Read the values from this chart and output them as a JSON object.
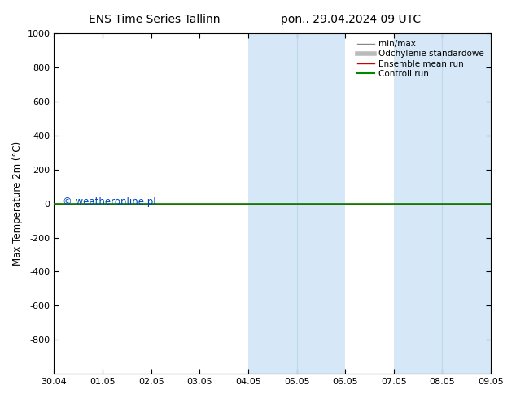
{
  "title_left": "ENS Time Series Tallinn",
  "title_right": "pon.. 29.04.2024 09 UTC",
  "ylabel": "Max Temperature 2m (°C)",
  "ylim_top": -1000,
  "ylim_bottom": 1000,
  "yticks": [
    -800,
    -600,
    -400,
    -200,
    0,
    200,
    400,
    600,
    800,
    1000
  ],
  "xtick_labels": [
    "30.04",
    "01.05",
    "02.05",
    "03.05",
    "04.05",
    "05.05",
    "06.05",
    "07.05",
    "08.05",
    "09.05"
  ],
  "xtick_positions": [
    0,
    1,
    2,
    3,
    4,
    5,
    6,
    7,
    8,
    9
  ],
  "shade_regions": [
    {
      "xmin": 4,
      "xmax": 5,
      "color": "#d6e8f7"
    },
    {
      "xmin": 5,
      "xmax": 6,
      "color": "#d6e8f7"
    },
    {
      "xmin": 7,
      "xmax": 8,
      "color": "#d6e8f7"
    },
    {
      "xmin": 8,
      "xmax": 9,
      "color": "#d6e8f7"
    }
  ],
  "green_line_color": "#008800",
  "red_line_color": "#cc0000",
  "legend_entries": [
    {
      "label": "min/max",
      "color": "#888888",
      "lw": 1
    },
    {
      "label": "Odchylenie standardowe",
      "color": "#bbbbbb",
      "lw": 4
    },
    {
      "label": "Ensemble mean run",
      "color": "#cc0000",
      "lw": 1
    },
    {
      "label": "Controll run",
      "color": "#008800",
      "lw": 1.5
    }
  ],
  "watermark": "© weatheronline.pl",
  "watermark_color": "#0044bb",
  "background_color": "#ffffff"
}
